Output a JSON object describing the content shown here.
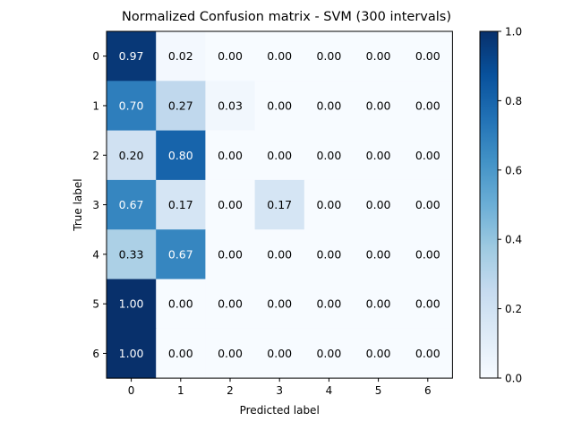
{
  "chart_data": {
    "type": "heatmap",
    "title": "Normalized Confusion matrix - SVM (300 intervals)",
    "xlabel": "Predicted label",
    "ylabel": "True label",
    "x_categories": [
      "0",
      "1",
      "2",
      "3",
      "4",
      "5",
      "6"
    ],
    "y_categories": [
      "0",
      "1",
      "2",
      "3",
      "4",
      "5",
      "6"
    ],
    "values": [
      [
        0.97,
        0.02,
        0.0,
        0.0,
        0.0,
        0.0,
        0.0
      ],
      [
        0.7,
        0.27,
        0.03,
        0.0,
        0.0,
        0.0,
        0.0
      ],
      [
        0.2,
        0.8,
        0.0,
        0.0,
        0.0,
        0.0,
        0.0
      ],
      [
        0.67,
        0.17,
        0.0,
        0.17,
        0.0,
        0.0,
        0.0
      ],
      [
        0.33,
        0.67,
        0.0,
        0.0,
        0.0,
        0.0,
        0.0
      ],
      [
        1.0,
        0.0,
        0.0,
        0.0,
        0.0,
        0.0,
        0.0
      ],
      [
        1.0,
        0.0,
        0.0,
        0.0,
        0.0,
        0.0,
        0.0
      ]
    ],
    "colormap": "Blues",
    "colorbar": {
      "range": [
        0.0,
        1.0
      ],
      "ticks": [
        "0.0",
        "0.2",
        "0.4",
        "0.6",
        "0.8",
        "1.0"
      ]
    },
    "grid": false
  }
}
